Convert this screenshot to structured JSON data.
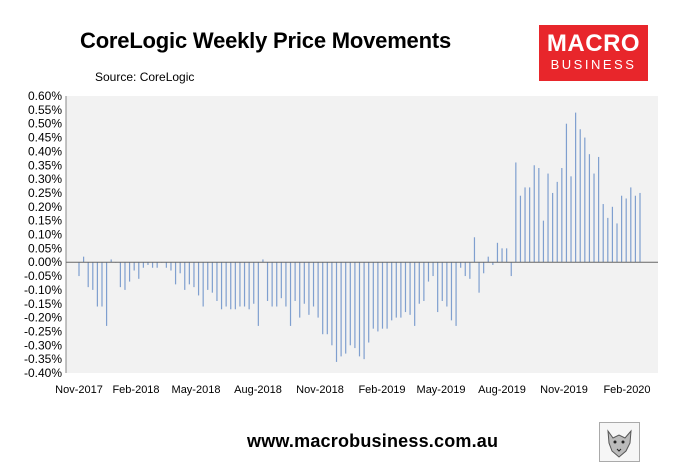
{
  "title": "CoreLogic Weekly Price Movements",
  "source": "Source: CoreLogic",
  "logo": {
    "line1": "MACRO",
    "line2": "BUSINESS",
    "color": "#e8262b"
  },
  "footer": "www.macrobusiness.com.au",
  "wolf_icon": "wolf-logo-icon",
  "chart_data": {
    "type": "bar",
    "title": "CoreLogic Weekly Price Movements",
    "xlabel": "",
    "ylabel": "",
    "ylim": [
      -0.004,
      0.006
    ],
    "ytick_labels": [
      "0.60%",
      "0.55%",
      "0.50%",
      "0.45%",
      "0.40%",
      "0.35%",
      "0.30%",
      "0.25%",
      "0.20%",
      "0.15%",
      "0.10%",
      "0.05%",
      "0.00%",
      "-0.05%",
      "-0.10%",
      "-0.15%",
      "-0.20%",
      "-0.25%",
      "-0.30%",
      "-0.35%",
      "-0.40%"
    ],
    "xtick_labels": [
      "Nov-2017",
      "Feb-2018",
      "May-2018",
      "Aug-2018",
      "Nov-2018",
      "Feb-2019",
      "May-2019",
      "Aug-2019",
      "Nov-2019",
      "Feb-2020"
    ],
    "bar_color": "#7f9fcf",
    "plot_background": "#f2f2f2",
    "grid": false,
    "values": [
      -0.05,
      0.02,
      -0.09,
      -0.1,
      -0.16,
      -0.16,
      -0.23,
      0.01,
      0.0,
      -0.09,
      -0.1,
      -0.07,
      -0.03,
      -0.06,
      -0.02,
      -0.01,
      -0.02,
      -0.02,
      0.0,
      -0.02,
      -0.03,
      -0.08,
      -0.04,
      -0.1,
      -0.08,
      -0.09,
      -0.12,
      -0.16,
      -0.1,
      -0.11,
      -0.14,
      -0.17,
      -0.16,
      -0.17,
      -0.17,
      -0.16,
      -0.16,
      -0.17,
      -0.15,
      -0.23,
      0.01,
      -0.14,
      -0.16,
      -0.16,
      -0.13,
      -0.16,
      -0.23,
      -0.14,
      -0.2,
      -0.15,
      -0.19,
      -0.16,
      -0.2,
      -0.26,
      -0.26,
      -0.3,
      -0.36,
      -0.34,
      -0.33,
      -0.3,
      -0.31,
      -0.34,
      -0.35,
      -0.29,
      -0.24,
      -0.25,
      -0.24,
      -0.24,
      -0.21,
      -0.2,
      -0.2,
      -0.18,
      -0.19,
      -0.23,
      -0.15,
      -0.14,
      -0.07,
      -0.05,
      -0.18,
      -0.14,
      -0.16,
      -0.21,
      -0.23,
      -0.02,
      -0.05,
      -0.06,
      0.09,
      -0.11,
      -0.04,
      0.02,
      -0.01,
      0.07,
      0.05,
      0.05,
      -0.05,
      0.36,
      0.24,
      0.27,
      0.27,
      0.35,
      0.34,
      0.15,
      0.32,
      0.25,
      0.29,
      0.34,
      0.5,
      0.31,
      0.54,
      0.48,
      0.45,
      0.39,
      0.32,
      0.38,
      0.21,
      0.16,
      0.2,
      0.14,
      0.24,
      0.23,
      0.27,
      0.24,
      0.25
    ]
  }
}
